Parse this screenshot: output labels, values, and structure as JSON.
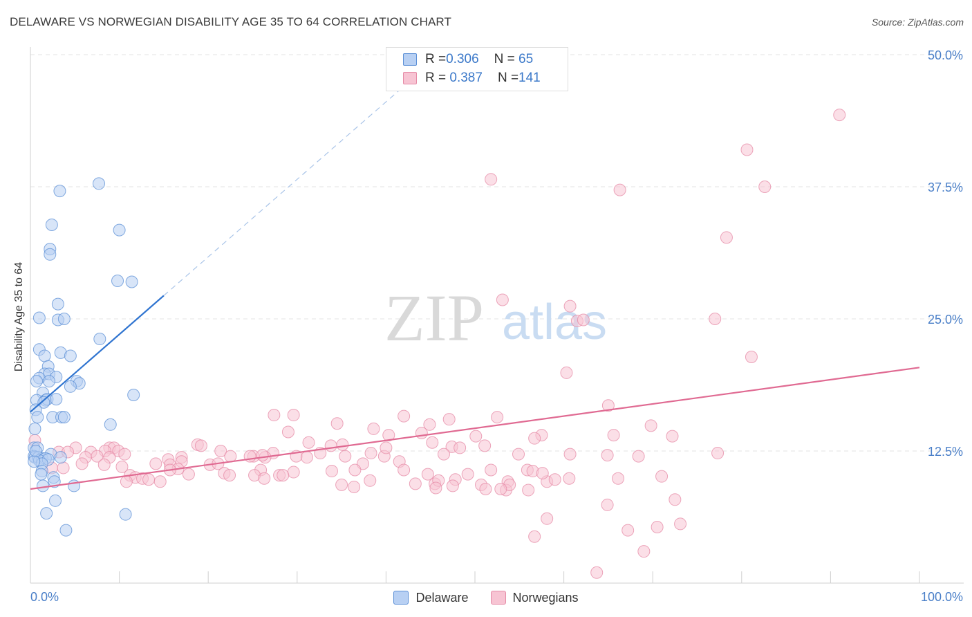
{
  "header": {
    "title": "DELAWARE VS NORWEGIAN DISABILITY AGE 35 TO 64 CORRELATION CHART",
    "source": "Source: ZipAtlas.com"
  },
  "watermark": {
    "zip": "ZIP",
    "atlas": "atlas"
  },
  "stats": [
    {
      "r_label": "R = ",
      "r_value": "0.306",
      "n_label": "N = ",
      "n_value": " 65",
      "color": "#5b8fd6",
      "fill": "#b8d0f3"
    },
    {
      "r_label": "R = ",
      "r_value": " 0.387",
      "n_label": "N = ",
      "n_value": "141",
      "color": "#e58aa6",
      "fill": "#f7c4d3"
    }
  ],
  "legend": [
    {
      "label": "Delaware",
      "color": "#5b8fd6",
      "fill": "#b8d0f3"
    },
    {
      "label": "Norwegians",
      "color": "#e58aa6",
      "fill": "#f7c4d3"
    }
  ],
  "chart_data": {
    "type": "scatter",
    "title": "DELAWARE VS NORWEGIAN DISABILITY AGE 35 TO 64 CORRELATION CHART",
    "xlabel": "",
    "ylabel": "Disability Age 35 to 64",
    "xlim": [
      0,
      100
    ],
    "ylim": [
      0,
      50
    ],
    "x_tick_labels": [
      "0.0%",
      "100.0%"
    ],
    "y_ticks": [
      12.5,
      25.0,
      37.5,
      50.0
    ],
    "y_tick_labels": [
      "12.5%",
      "25.0%",
      "37.5%",
      "50.0%"
    ],
    "grid": true,
    "series": [
      {
        "name": "Delaware",
        "color": "#5b8fd6",
        "fill": "#b8d0f3",
        "trend": {
          "x0": 0,
          "y0": 16.2,
          "x1": 15,
          "y1": 27.2,
          "dashed_to_x": 42
        },
        "points": [
          [
            3.3,
            37.1
          ],
          [
            7.7,
            37.8
          ],
          [
            2.4,
            33.9
          ],
          [
            10.0,
            33.4
          ],
          [
            2.2,
            31.6
          ],
          [
            2.2,
            31.1
          ],
          [
            9.8,
            28.6
          ],
          [
            11.4,
            28.5
          ],
          [
            3.1,
            26.4
          ],
          [
            1.0,
            25.1
          ],
          [
            3.1,
            24.9
          ],
          [
            3.8,
            25.0
          ],
          [
            7.8,
            23.1
          ],
          [
            1.0,
            22.1
          ],
          [
            3.4,
            21.8
          ],
          [
            4.5,
            21.5
          ],
          [
            1.6,
            21.5
          ],
          [
            2.0,
            20.5
          ],
          [
            1.6,
            19.8
          ],
          [
            2.1,
            19.8
          ],
          [
            2.9,
            19.5
          ],
          [
            1.0,
            19.4
          ],
          [
            0.7,
            19.1
          ],
          [
            2.1,
            19.1
          ],
          [
            5.2,
            19.1
          ],
          [
            5.5,
            18.9
          ],
          [
            4.5,
            18.6
          ],
          [
            1.4,
            18.0
          ],
          [
            11.6,
            17.8
          ],
          [
            0.7,
            17.3
          ],
          [
            1.7,
            17.3
          ],
          [
            1.9,
            17.4
          ],
          [
            2.9,
            17.4
          ],
          [
            1.5,
            17.1
          ],
          [
            0.6,
            16.4
          ],
          [
            0.8,
            15.7
          ],
          [
            2.5,
            15.7
          ],
          [
            3.5,
            15.7
          ],
          [
            3.8,
            15.7
          ],
          [
            9.0,
            15.0
          ],
          [
            0.5,
            14.6
          ],
          [
            0.4,
            12.8
          ],
          [
            0.8,
            12.8
          ],
          [
            2.3,
            12.2
          ],
          [
            0.4,
            12.0
          ],
          [
            0.5,
            11.9
          ],
          [
            0.9,
            11.9
          ],
          [
            1.3,
            11.8
          ],
          [
            1.7,
            11.8
          ],
          [
            3.4,
            11.9
          ],
          [
            1.0,
            11.6
          ],
          [
            2.0,
            11.7
          ],
          [
            1.3,
            11.3
          ],
          [
            1.3,
            10.6
          ],
          [
            1.2,
            10.3
          ],
          [
            2.6,
            10.0
          ],
          [
            1.4,
            9.2
          ],
          [
            2.7,
            9.6
          ],
          [
            4.9,
            9.2
          ],
          [
            2.8,
            7.8
          ],
          [
            1.8,
            6.6
          ],
          [
            10.7,
            6.5
          ],
          [
            4.0,
            5.0
          ],
          [
            0.4,
            11.5
          ],
          [
            0.6,
            12.5
          ]
        ]
      },
      {
        "name": "Norwegians",
        "color": "#e58aa6",
        "fill": "#f7c4d3",
        "trend": {
          "x0": 0,
          "y0": 8.9,
          "x1": 100,
          "y1": 20.4
        },
        "points": [
          [
            91.0,
            44.3
          ],
          [
            80.6,
            41.0
          ],
          [
            51.8,
            38.2
          ],
          [
            66.3,
            37.2
          ],
          [
            82.6,
            37.5
          ],
          [
            78.3,
            32.7
          ],
          [
            53.1,
            26.8
          ],
          [
            60.7,
            26.2
          ],
          [
            61.5,
            24.8
          ],
          [
            62.2,
            24.9
          ],
          [
            77.0,
            25.0
          ],
          [
            81.1,
            21.4
          ],
          [
            60.3,
            19.9
          ],
          [
            65.0,
            16.8
          ],
          [
            27.4,
            15.9
          ],
          [
            29.6,
            15.9
          ],
          [
            42.0,
            15.8
          ],
          [
            52.5,
            15.7
          ],
          [
            47.1,
            15.5
          ],
          [
            34.5,
            15.1
          ],
          [
            44.9,
            15.0
          ],
          [
            69.8,
            14.9
          ],
          [
            38.6,
            14.6
          ],
          [
            44.0,
            14.2
          ],
          [
            29.0,
            14.3
          ],
          [
            40.3,
            14.0
          ],
          [
            57.5,
            14.0
          ],
          [
            65.6,
            14.0
          ],
          [
            72.2,
            13.9
          ],
          [
            50.1,
            13.9
          ],
          [
            56.7,
            13.7
          ],
          [
            31.3,
            13.3
          ],
          [
            18.8,
            13.1
          ],
          [
            19.2,
            13.0
          ],
          [
            35.1,
            13.1
          ],
          [
            33.8,
            13.0
          ],
          [
            47.4,
            12.9
          ],
          [
            51.1,
            13.0
          ],
          [
            5.1,
            12.8
          ],
          [
            8.9,
            12.8
          ],
          [
            9.4,
            12.8
          ],
          [
            6.8,
            12.4
          ],
          [
            8.4,
            12.5
          ],
          [
            9.9,
            12.5
          ],
          [
            10.6,
            12.2
          ],
          [
            3.2,
            12.4
          ],
          [
            4.2,
            12.4
          ],
          [
            21.4,
            12.5
          ],
          [
            27.3,
            12.3
          ],
          [
            32.6,
            12.3
          ],
          [
            38.3,
            12.3
          ],
          [
            46.5,
            12.2
          ],
          [
            54.9,
            12.2
          ],
          [
            60.7,
            12.2
          ],
          [
            64.9,
            12.1
          ],
          [
            68.4,
            12.0
          ],
          [
            77.3,
            12.3
          ],
          [
            29.9,
            12.0
          ],
          [
            22.5,
            12.0
          ],
          [
            25.1,
            12.0
          ],
          [
            26.4,
            11.9
          ],
          [
            31.1,
            11.9
          ],
          [
            35.4,
            12.0
          ],
          [
            7.5,
            12.0
          ],
          [
            6.2,
            11.9
          ],
          [
            8.9,
            11.9
          ],
          [
            17.0,
            11.9
          ],
          [
            26.1,
            12.1
          ],
          [
            24.7,
            12.0
          ],
          [
            39.8,
            12.0
          ],
          [
            17.0,
            11.5
          ],
          [
            15.5,
            11.7
          ],
          [
            41.5,
            11.5
          ],
          [
            37.4,
            11.3
          ],
          [
            20.2,
            11.2
          ],
          [
            14.1,
            11.3
          ],
          [
            5.8,
            11.3
          ],
          [
            8.3,
            11.2
          ],
          [
            21.1,
            11.3
          ],
          [
            10.3,
            11.0
          ],
          [
            15.7,
            11.2
          ],
          [
            2.4,
            10.9
          ],
          [
            3.7,
            10.9
          ],
          [
            16.6,
            10.8
          ],
          [
            25.9,
            10.7
          ],
          [
            29.6,
            10.5
          ],
          [
            33.9,
            10.6
          ],
          [
            28.0,
            10.2
          ],
          [
            36.5,
            10.7
          ],
          [
            42.0,
            10.7
          ],
          [
            44.7,
            10.3
          ],
          [
            55.9,
            10.7
          ],
          [
            56.5,
            10.6
          ],
          [
            49.2,
            10.3
          ],
          [
            15.7,
            10.7
          ],
          [
            17.8,
            10.3
          ],
          [
            21.8,
            10.4
          ],
          [
            22.4,
            10.2
          ],
          [
            25.2,
            10.2
          ],
          [
            28.4,
            10.2
          ],
          [
            26.3,
            9.9
          ],
          [
            11.2,
            10.2
          ],
          [
            11.8,
            10.0
          ],
          [
            12.6,
            9.9
          ],
          [
            13.3,
            9.8
          ],
          [
            14.6,
            9.6
          ],
          [
            10.8,
            9.6
          ],
          [
            47.8,
            9.8
          ],
          [
            43.3,
            9.4
          ],
          [
            38.2,
            9.7
          ],
          [
            53.7,
            9.6
          ],
          [
            58.1,
            9.6
          ],
          [
            60.6,
            9.9
          ],
          [
            35.0,
            9.3
          ],
          [
            45.5,
            9.4
          ],
          [
            50.7,
            9.3
          ],
          [
            51.2,
            8.9
          ],
          [
            53.5,
            8.8
          ],
          [
            56.0,
            8.8
          ],
          [
            45.9,
            9.7
          ],
          [
            59.0,
            9.8
          ],
          [
            53.9,
            9.3
          ],
          [
            66.1,
            9.9
          ],
          [
            52.9,
            8.9
          ],
          [
            47.5,
            9.2
          ],
          [
            36.4,
            9.1
          ],
          [
            45.6,
            9.0
          ],
          [
            57.6,
            10.4
          ],
          [
            51.8,
            10.7
          ],
          [
            64.9,
            7.4
          ],
          [
            58.1,
            6.1
          ],
          [
            56.7,
            4.4
          ],
          [
            72.5,
            7.9
          ],
          [
            70.5,
            5.3
          ],
          [
            67.2,
            5.0
          ],
          [
            69.0,
            3.0
          ],
          [
            63.7,
            1.0
          ],
          [
            73.1,
            5.6
          ],
          [
            71.0,
            10.1
          ],
          [
            40.0,
            12.8
          ],
          [
            45.2,
            13.3
          ],
          [
            48.3,
            12.8
          ],
          [
            0.5,
            13.5
          ]
        ]
      }
    ]
  }
}
